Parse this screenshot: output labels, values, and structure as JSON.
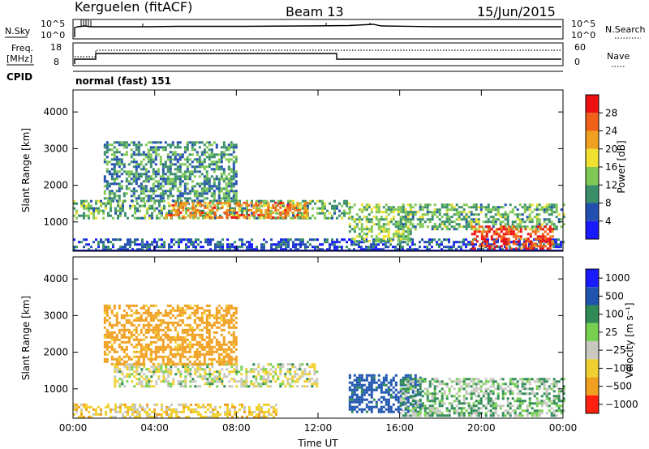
{
  "header": {
    "title": "Kerguelen (fitACF)",
    "beam": "Beam 13",
    "date": "15/Jun/2015"
  },
  "nsky_panel": {
    "label": "N.Sky",
    "search_label": "N.Search",
    "tick_labels": [
      "10^5",
      "10^0"
    ],
    "right_tick_labels": [
      "10^5",
      "10^0"
    ]
  },
  "freq_panel": {
    "label_line1": "Freq.",
    "label_line2": "[MHz]",
    "nave_label": "Nave",
    "left_ticks": [
      "18",
      "8"
    ],
    "right_ticks": [
      "60",
      "0"
    ]
  },
  "cpid": {
    "label": "CPID",
    "value": "normal (fast) 151"
  },
  "colors": {
    "power_scale": [
      "#1a1aff",
      "#224fb0",
      "#3a8f6a",
      "#7fc855",
      "#f0e030",
      "#f0a020",
      "#f06018",
      "#ee1010"
    ],
    "velocity_scale": [
      "#1a1aff",
      "#1f55b0",
      "#2f8a55",
      "#77d050",
      "#c8c8c0",
      "#f0d030",
      "#f0a020",
      "#ff2010"
    ]
  },
  "chart_data": [
    {
      "type": "heatmap",
      "name": "power-panel",
      "xlabel": "",
      "ylabel": "Slant Range [km]",
      "x_ticks": [
        "00:00",
        "04:00",
        "08:00",
        "12:00",
        "16:00",
        "20:00",
        "00:00"
      ],
      "xlim_hours": [
        0,
        24
      ],
      "ylim": [
        200,
        4600
      ],
      "y_ticks": [
        1000,
        2000,
        3000,
        4000
      ],
      "colorbar": {
        "label": "Power [dB]",
        "range": [
          0,
          32
        ],
        "ticks": [
          "4",
          "8",
          "12",
          "16",
          "20",
          "24",
          "28"
        ]
      },
      "echo_regions": [
        {
          "t_start": 0.0,
          "t_end": 13.5,
          "r_low": 1100,
          "r_high": 1600,
          "power_db": 12
        },
        {
          "t_start": 4.5,
          "t_end": 11.5,
          "r_low": 1100,
          "r_high": 1550,
          "power_db": 24
        },
        {
          "t_start": 1.5,
          "t_end": 8.0,
          "r_low": 1600,
          "r_high": 3200,
          "power_db": 10
        },
        {
          "t_start": 0.0,
          "t_end": 24.0,
          "r_low": 250,
          "r_high": 550,
          "power_db": 6
        },
        {
          "t_start": 13.5,
          "t_end": 16.5,
          "r_low": 500,
          "r_high": 1500,
          "power_db": 14
        },
        {
          "t_start": 16.0,
          "t_end": 24.0,
          "r_low": 800,
          "r_high": 1500,
          "power_db": 12
        },
        {
          "t_start": 19.5,
          "t_end": 23.5,
          "r_low": 250,
          "r_high": 900,
          "power_db": 28
        }
      ]
    },
    {
      "type": "heatmap",
      "name": "velocity-panel",
      "xlabel": "Time UT",
      "ylabel": "Slant Range [km]",
      "x_ticks": [
        "00:00",
        "04:00",
        "08:00",
        "12:00",
        "16:00",
        "20:00",
        "00:00"
      ],
      "xlim_hours": [
        0,
        24
      ],
      "ylim": [
        200,
        4600
      ],
      "y_ticks": [
        1000,
        2000,
        3000,
        4000
      ],
      "colorbar": {
        "label": "Velocity [m s⁻¹]",
        "ticks": [
          "1000",
          "500",
          "100",
          "25",
          "−25",
          "−100",
          "−500",
          "−1000"
        ]
      },
      "echo_regions": [
        {
          "t_start": 2.0,
          "t_end": 12.0,
          "r_low": 1100,
          "r_high": 1700,
          "velocity": 0
        },
        {
          "t_start": 1.5,
          "t_end": 8.0,
          "r_low": 1700,
          "r_high": 3300,
          "velocity": -150
        },
        {
          "t_start": 0.0,
          "t_end": 10.0,
          "r_low": 250,
          "r_high": 600,
          "velocity": -60
        },
        {
          "t_start": 13.5,
          "t_end": 17.0,
          "r_low": 400,
          "r_high": 1400,
          "velocity": 150
        },
        {
          "t_start": 16.0,
          "t_end": 24.0,
          "r_low": 300,
          "r_high": 1300,
          "velocity": 40
        }
      ]
    }
  ]
}
